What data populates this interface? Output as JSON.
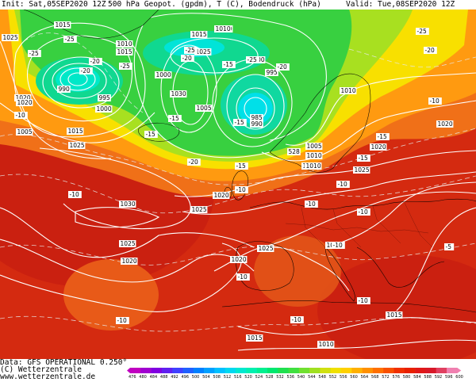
{
  "header": {
    "init": "Init: Sat,05SEP2020 12Z",
    "title": "500 hPa Geopot. (gpdm), T (C), Bodendruck (hPa)",
    "valid": "Valid: Tue,08SEP2020 12Z"
  },
  "footer": {
    "data": "Data: GFS OPERATIONAL 0.250°",
    "copyright": "(C) Wetterzentrale",
    "url": "www.wetterzentrale.de"
  },
  "pressure_labels": [
    {
      "text": "1025"
    },
    {
      "text": "1015"
    },
    {
      "text": "1010"
    },
    {
      "text": "1015"
    },
    {
      "text": "1010"
    },
    {
      "text": "1025"
    },
    {
      "text": "1000"
    },
    {
      "text": "990"
    },
    {
      "text": "995"
    },
    {
      "text": "1030"
    },
    {
      "text": "1020"
    },
    {
      "text": "1000"
    },
    {
      "text": "1005"
    },
    {
      "text": "1005"
    },
    {
      "text": "1015"
    },
    {
      "text": "1025"
    },
    {
      "text": "1010"
    },
    {
      "text": "985"
    },
    {
      "text": "990"
    },
    {
      "text": "1020"
    },
    {
      "text": "1005"
    },
    {
      "text": "1010"
    },
    {
      "text": "1015"
    },
    {
      "text": "1020"
    },
    {
      "text": "1020"
    },
    {
      "text": "1025"
    },
    {
      "text": "1020"
    },
    {
      "text": "1025"
    },
    {
      "text": "1030"
    },
    {
      "text": "1025"
    },
    {
      "text": "1020"
    },
    {
      "text": "1020"
    },
    {
      "text": "1025"
    },
    {
      "text": "1020"
    },
    {
      "text": "1015"
    },
    {
      "text": "1015"
    },
    {
      "text": "1010"
    },
    {
      "text": "1015"
    },
    {
      "text": "1010"
    },
    {
      "text": "1010"
    },
    {
      "text": "995"
    },
    {
      "text": "1000"
    },
    {
      "text": "528"
    }
  ],
  "temp_labels": [
    {
      "text": "-25"
    },
    {
      "text": "-25"
    },
    {
      "text": "-20"
    },
    {
      "text": "-25"
    },
    {
      "text": "-20"
    },
    {
      "text": "-25"
    },
    {
      "text": "-20"
    },
    {
      "text": "-10"
    },
    {
      "text": "-15"
    },
    {
      "text": "-25"
    },
    {
      "text": "-20"
    },
    {
      "text": "-15"
    },
    {
      "text": "-20"
    },
    {
      "text": "-15"
    },
    {
      "text": "-10"
    },
    {
      "text": "-10"
    },
    {
      "text": "-10"
    },
    {
      "text": "-10"
    },
    {
      "text": "-10"
    },
    {
      "text": "-10"
    },
    {
      "text": "-10"
    },
    {
      "text": "-10"
    },
    {
      "text": "-10"
    },
    {
      "text": "-15"
    },
    {
      "text": "-10"
    },
    {
      "text": "-15"
    },
    {
      "text": "-15"
    },
    {
      "text": "-20"
    },
    {
      "text": "-25"
    },
    {
      "text": "-15"
    },
    {
      "text": "-5"
    },
    {
      "text": "-10"
    }
  ],
  "colorbar": {
    "labels": [
      "476",
      "480",
      "484",
      "488",
      "492",
      "496",
      "500",
      "504",
      "508",
      "512",
      "516",
      "520",
      "524",
      "528",
      "532",
      "536",
      "540",
      "544",
      "548",
      "552",
      "556",
      "560",
      "564",
      "568",
      "572",
      "576",
      "580",
      "584",
      "588",
      "592",
      "596",
      "600"
    ],
    "colors": [
      "#c000c0",
      "#a000d0",
      "#8000e0",
      "#6020f0",
      "#4040ff",
      "#2060ff",
      "#0080ff",
      "#00a0ff",
      "#00c0ff",
      "#00d8f0",
      "#00e8d0",
      "#00f0b0",
      "#00f090",
      "#00e870",
      "#20e050",
      "#40e040",
      "#70e030",
      "#a0e020",
      "#d0e010",
      "#f0e000",
      "#ffd000",
      "#ffb000",
      "#ff9000",
      "#ff7000",
      "#f85000",
      "#f03000",
      "#e82000",
      "#e01818",
      "#d81828",
      "#e04060",
      "#f080b0"
    ]
  }
}
